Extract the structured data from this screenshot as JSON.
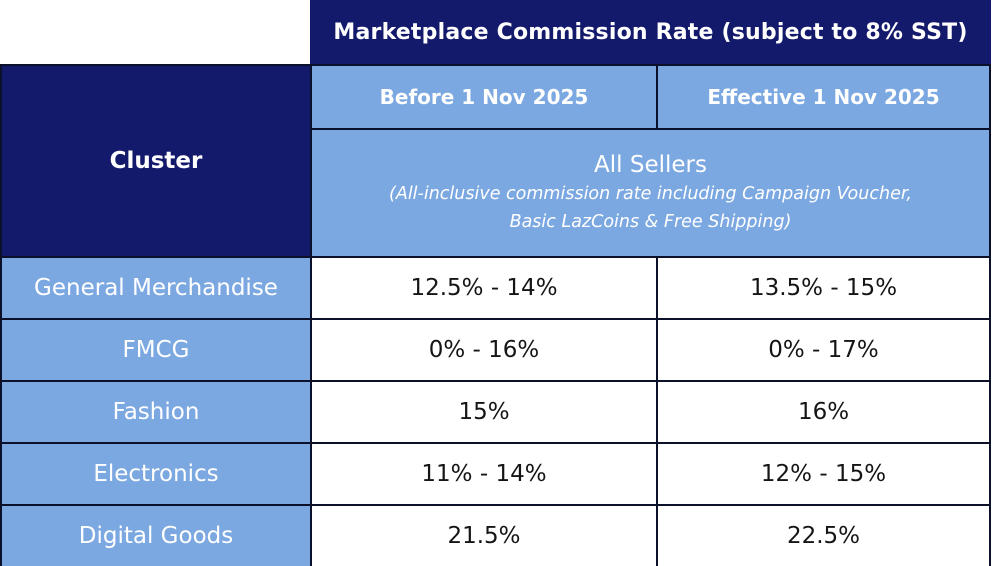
{
  "colors": {
    "header_navy": "#141a6b",
    "cell_blue": "#7ca8e1",
    "grid_border": "#0b102b",
    "header_text": "#ffffff",
    "value_text": "#151515"
  },
  "banner": {
    "title": "Marketplace Commission Rate (subject to 8% SST)"
  },
  "table": {
    "cluster_header": "Cluster",
    "columns": {
      "before": "Before 1 Nov 2025",
      "effective": "Effective 1 Nov 2025"
    },
    "sellers": {
      "title": "All Sellers",
      "subtitle_line1": "(All-inclusive commission rate including Campaign Voucher,",
      "subtitle_line2": "Basic LazCoins & Free Shipping)"
    },
    "rows": [
      {
        "cluster": "General Merchandise",
        "before": "12.5% - 14%",
        "effective": "13.5% - 15%"
      },
      {
        "cluster": "FMCG",
        "before": "0% - 16%",
        "effective": "0% - 17%"
      },
      {
        "cluster": "Fashion",
        "before": "15%",
        "effective": "16%"
      },
      {
        "cluster": "Electronics",
        "before": "11% - 14%",
        "effective": "12% - 15%"
      },
      {
        "cluster": "Digital Goods",
        "before": "21.5%",
        "effective": "22.5%"
      }
    ]
  },
  "chart_data": {
    "type": "table",
    "title": "Marketplace Commission Rate (subject to 8% SST)",
    "columns": [
      "Cluster",
      "Before 1 Nov 2025",
      "Effective 1 Nov 2025"
    ],
    "rows": [
      [
        "General Merchandise",
        "12.5% - 14%",
        "13.5% - 15%"
      ],
      [
        "FMCG",
        "0% - 16%",
        "0% - 17%"
      ],
      [
        "Fashion",
        "15%",
        "16%"
      ],
      [
        "Electronics",
        "11% - 14%",
        "12% - 15%"
      ],
      [
        "Digital Goods",
        "21.5%",
        "22.5%"
      ]
    ],
    "notes": "All Sellers (All-inclusive commission rate including Campaign Voucher, Basic LazCoins & Free Shipping)"
  }
}
